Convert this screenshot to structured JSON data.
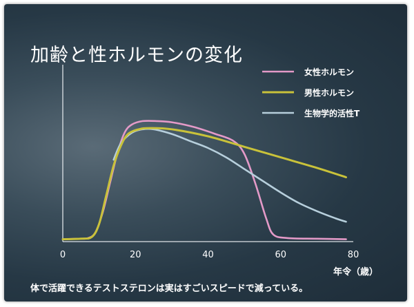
{
  "chart_data": {
    "type": "line",
    "title": "加齢と性ホルモンの変化",
    "xlabel": "年令（歳）",
    "ylabel": "",
    "xlim": [
      0,
      80
    ],
    "xticks": [
      0,
      20,
      40,
      60,
      80
    ],
    "grid": false,
    "legend_position": "top-right",
    "series": [
      {
        "name": "女性ホルモン",
        "color": "#e49ac8",
        "points": [
          [
            0,
            2
          ],
          [
            4,
            2.5
          ],
          [
            7,
            3
          ],
          [
            9,
            8
          ],
          [
            11,
            25
          ],
          [
            13,
            50
          ],
          [
            15,
            75
          ],
          [
            17,
            93
          ],
          [
            19,
            100
          ],
          [
            22,
            103
          ],
          [
            26,
            103
          ],
          [
            30,
            102
          ],
          [
            36,
            98
          ],
          [
            42,
            92
          ],
          [
            47,
            86
          ],
          [
            50,
            75
          ],
          [
            53,
            50
          ],
          [
            56,
            20
          ],
          [
            58,
            6
          ],
          [
            62,
            3
          ],
          [
            70,
            2.5
          ],
          [
            78,
            2
          ]
        ]
      },
      {
        "name": "男性ホルモン",
        "color": "#c9c23a",
        "points": [
          [
            0,
            2
          ],
          [
            5,
            2.5
          ],
          [
            8,
            4
          ],
          [
            10,
            15
          ],
          [
            12,
            40
          ],
          [
            14,
            65
          ],
          [
            16,
            82
          ],
          [
            18,
            92
          ],
          [
            21,
            96
          ],
          [
            24,
            97
          ],
          [
            30,
            96
          ],
          [
            40,
            90
          ],
          [
            50,
            81
          ],
          [
            60,
            72
          ],
          [
            70,
            63
          ],
          [
            78,
            55
          ]
        ]
      },
      {
        "name": "生物学的活性T",
        "color": "#b7cfdc",
        "points": [
          [
            14,
            70
          ],
          [
            16,
            84
          ],
          [
            19,
            93
          ],
          [
            22,
            96
          ],
          [
            25,
            96
          ],
          [
            30,
            92
          ],
          [
            35,
            86
          ],
          [
            40,
            80
          ],
          [
            45,
            72
          ],
          [
            50,
            62
          ],
          [
            55,
            52
          ],
          [
            60,
            42
          ],
          [
            65,
            33
          ],
          [
            70,
            26
          ],
          [
            75,
            20
          ],
          [
            78,
            17
          ]
        ]
      }
    ]
  },
  "caption": "体で活躍できるテストステロンは実はすごいスピードで減っている。"
}
